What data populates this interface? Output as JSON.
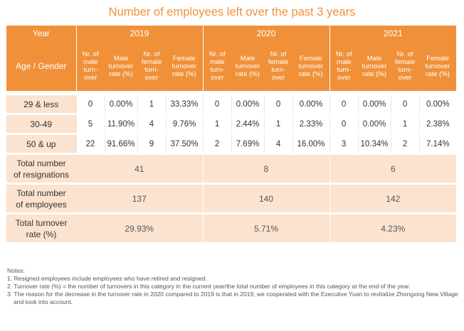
{
  "title": "Number of employees left over the past 3 years",
  "header": {
    "year_label": "Year",
    "age_label": "Age / Gender",
    "years": [
      "2019",
      "2020",
      "2021"
    ],
    "columns": [
      [
        "Nr. of",
        "male",
        "turn-",
        "over"
      ],
      [
        "Male",
        "turnover",
        "rate (%)"
      ],
      [
        "Nr. of",
        "female",
        "turn-",
        "over"
      ],
      [
        "Female",
        "turnover",
        "rate (%)"
      ]
    ]
  },
  "rows": [
    {
      "label": "29 & less",
      "cells": [
        "0",
        "0.00%",
        "1",
        "33.33%",
        "0",
        "0.00%",
        "0",
        "0.00%",
        "0",
        "0.00%",
        "0",
        "0.00%"
      ]
    },
    {
      "label": "30-49",
      "cells": [
        "5",
        "11.90%",
        "4",
        "9.76%",
        "1",
        "2.44%",
        "1",
        "2.33%",
        "0",
        "0.00%",
        "1",
        "2.38%"
      ]
    },
    {
      "label": "50 & up",
      "cells": [
        "22",
        "91.66%",
        "9",
        "37.50%",
        "2",
        "7.69%",
        "4",
        "16.00%",
        "3",
        "10.34%",
        "2",
        "7.14%"
      ]
    }
  ],
  "totals": [
    {
      "label": [
        "Total number",
        "of resignations"
      ],
      "values": [
        "41",
        "8",
        "6"
      ]
    },
    {
      "label": [
        "Total number",
        "of employees"
      ],
      "values": [
        "137",
        "140",
        "142"
      ]
    },
    {
      "label": [
        "Total turnover",
        "rate (%)"
      ],
      "values": [
        "29.93%",
        "5.71%",
        "4.23%"
      ]
    }
  ],
  "notes": {
    "heading": "Notes:",
    "items": [
      "1. Resigned employees include employees who have retired and resigned.",
      "2. Turnover rate (%) = the number of turnovers in this category in the current year/the total number of employees in this category at the end of the year.",
      "3. The reason for the decrease in the turnover rate in 2020 compared to 2019 is that in 2019, we cooperated with the Executive Yuan to revitalize Zhongxing New Village and took into account."
    ]
  }
}
